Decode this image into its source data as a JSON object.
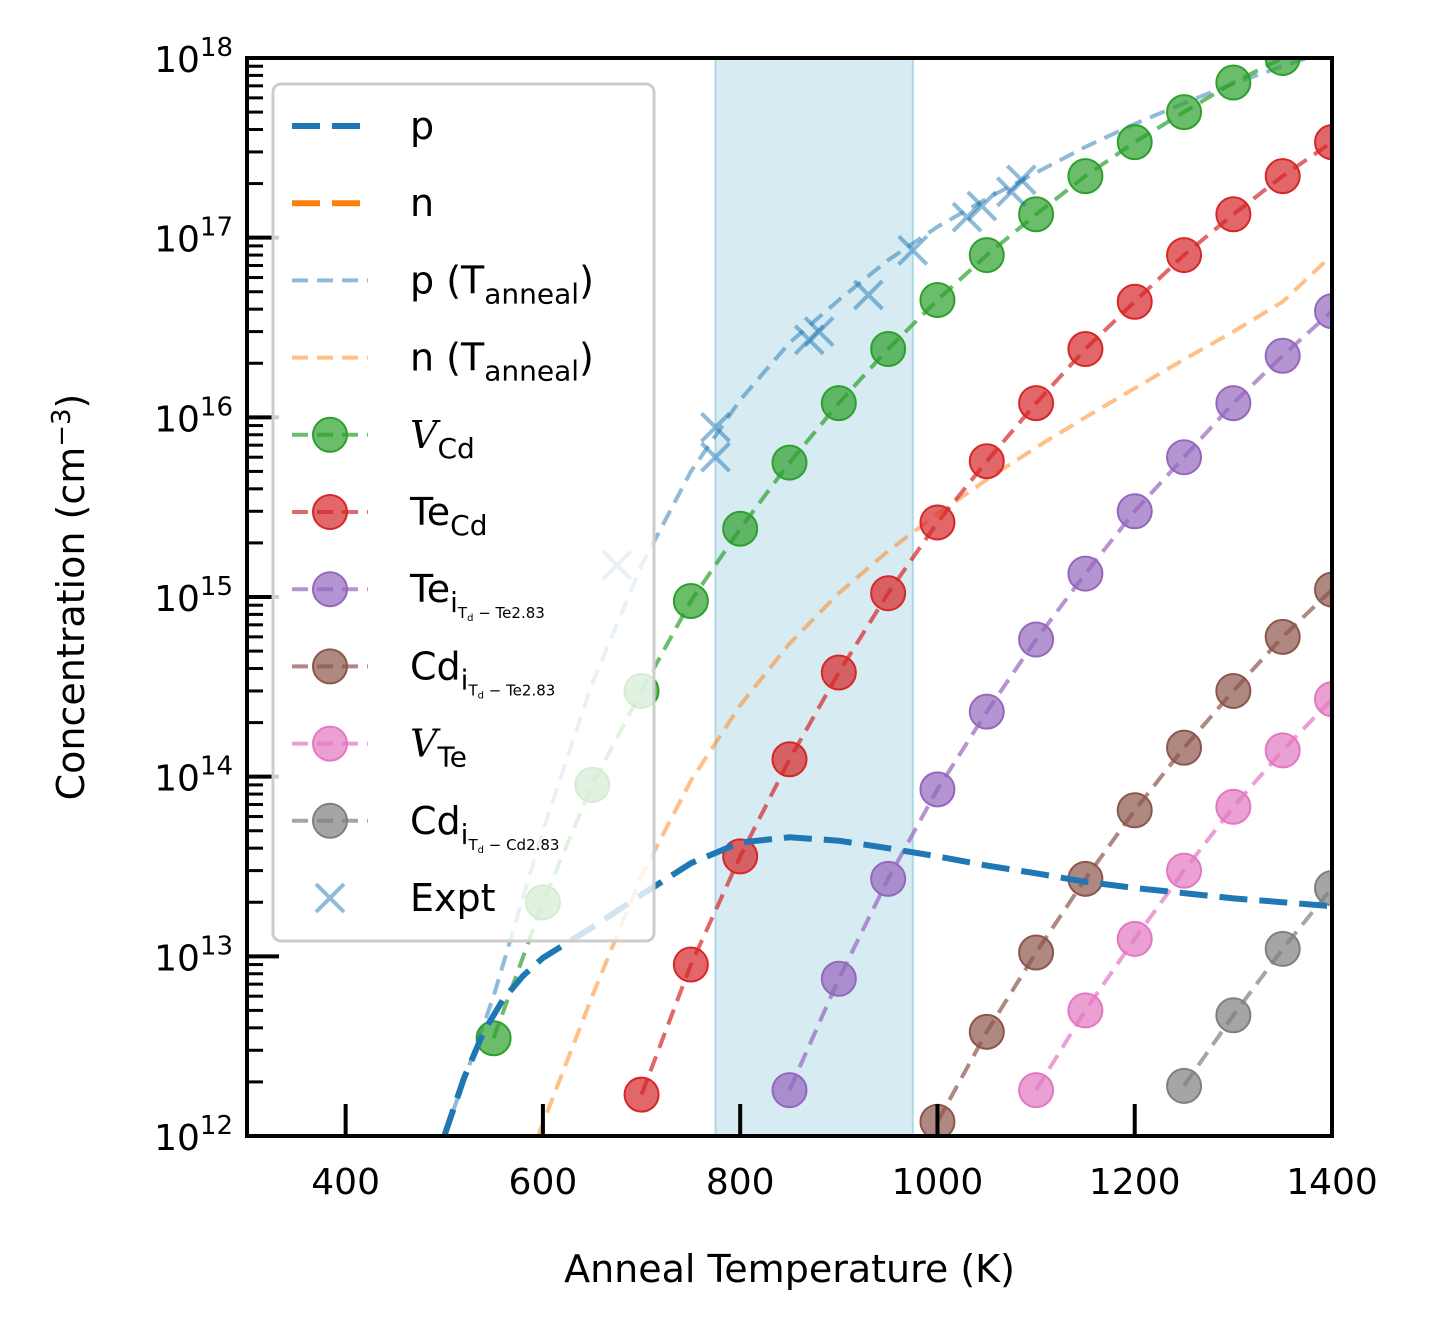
{
  "chart_data": {
    "type": "line",
    "xlabel": "Anneal Temperature (K)",
    "ylabel": {
      "main": "Concentration (cm",
      "sup": "−3",
      "end": ")"
    },
    "xlim": [
      300,
      1400
    ],
    "ylim_exp": [
      12,
      18
    ],
    "y_scale": "log",
    "x_ticks": [
      400,
      600,
      800,
      1000,
      1200,
      1400
    ],
    "y_ticks": [
      {
        "exp": 12,
        "base": "10",
        "sup": "12"
      },
      {
        "exp": 13,
        "base": "10",
        "sup": "13"
      },
      {
        "exp": 14,
        "base": "10",
        "sup": "14"
      },
      {
        "exp": 15,
        "base": "10",
        "sup": "15"
      },
      {
        "exp": 16,
        "base": "10",
        "sup": "16"
      },
      {
        "exp": 17,
        "base": "10",
        "sup": "17"
      },
      {
        "exp": 18,
        "base": "10",
        "sup": "18"
      }
    ],
    "shaded_band": {
      "x": [
        775,
        975
      ],
      "color": "#add8e6"
    },
    "legend_position": "upper-left",
    "series": [
      {
        "key": "p",
        "name": "p",
        "color": "#1f77b4",
        "style": "dashed-thick",
        "x": [
          500,
          520,
          540,
          560,
          580,
          600,
          650,
          700,
          750,
          800,
          850,
          900,
          950,
          1000,
          1050,
          1100,
          1150,
          1200,
          1250,
          1300,
          1350,
          1400
        ],
        "y": [
          1000000000000.0,
          2100000000000.0,
          3800000000000.0,
          5800000000000.0,
          7800000000000.0,
          9800000000000.0,
          14500000000000.0,
          22000000000000.0,
          33000000000000.0,
          43000000000000.0,
          46000000000000.0,
          44000000000000.0,
          40000000000000.0,
          36000000000000.0,
          32000000000000.0,
          29000000000000.0,
          26000000000000.0,
          24000000000000.0,
          22500000000000.0,
          21000000000000.0,
          20000000000000.0,
          19000000000000.0
        ]
      },
      {
        "key": "n",
        "name": "n",
        "color": "#ff7f0e",
        "style": "dashed-thick",
        "x": [],
        "y": []
      },
      {
        "key": "p_anneal",
        "name": "p (T",
        "sub": "anneal",
        "name_end": ")",
        "color": "#1f77b4",
        "style": "dashed-light",
        "x": [
          500,
          550,
          600,
          650,
          700,
          750,
          800,
          850,
          900,
          950,
          1000,
          1050,
          1100,
          1150,
          1200,
          1250,
          1300,
          1350,
          1375
        ],
        "y": [
          1000000000000.0,
          6000000000000.0,
          50000000000000.0,
          330000000000000.0,
          1500000000000000.0,
          5000000000000000.0,
          1.25e+16,
          2.6e+16,
          4.5e+16,
          7.5e+16,
          1.15e+17,
          1.65e+17,
          2.3e+17,
          3.2e+17,
          4.3e+17,
          5.6e+17,
          7.2e+17,
          9e+17,
          1e+18
        ]
      },
      {
        "key": "n_anneal",
        "name": "n (T",
        "sub": "anneal",
        "name_end": ")",
        "color": "#ff7f0e",
        "style": "dashed-light",
        "x": [
          595,
          650,
          700,
          750,
          800,
          850,
          900,
          950,
          1000,
          1050,
          1100,
          1150,
          1200,
          1250,
          1300,
          1350,
          1400
        ],
        "y": [
          1000000000000.0,
          6000000000000.0,
          28000000000000.0,
          95000000000000.0,
          250000000000000.0,
          550000000000000.0,
          1050000000000000.0,
          1800000000000000.0,
          2900000000000000.0,
          4500000000000000.0,
          6800000000000000.0,
          1e+16,
          1.45e+16,
          2.1e+16,
          3e+16,
          4.4e+16,
          8e+16
        ]
      },
      {
        "key": "v_cd",
        "name": "V",
        "sub": "Cd",
        "italic": true,
        "color": "#2ca02c",
        "style": "dashed-markers",
        "x": [
          550,
          600,
          650,
          700,
          750,
          800,
          850,
          900,
          950,
          1000,
          1050,
          1100,
          1150,
          1200,
          1250,
          1300,
          1350
        ],
        "y": [
          3500000000000.0,
          20000000000000.0,
          90000000000000.0,
          300000000000000.0,
          950000000000000.0,
          2400000000000000.0,
          5600000000000000.0,
          1.2e+16,
          2.4e+16,
          4.5e+16,
          8e+16,
          1.35e+17,
          2.2e+17,
          3.4e+17,
          5e+17,
          7.3e+17,
          1e+18
        ]
      },
      {
        "key": "te_cd",
        "name": "Te",
        "sub": "Cd",
        "color": "#d62728",
        "style": "dashed-markers",
        "x": [
          700,
          750,
          800,
          850,
          900,
          950,
          1000,
          1050,
          1100,
          1150,
          1200,
          1250,
          1300,
          1350,
          1400
        ],
        "y": [
          1700000000000.0,
          9000000000000.0,
          36000000000000.0,
          125000000000000.0,
          380000000000000.0,
          1050000000000000.0,
          2600000000000000.0,
          5700000000000000.0,
          1.2e+16,
          2.4e+16,
          4.4e+16,
          8e+16,
          1.35e+17,
          2.2e+17,
          3.4e+17
        ]
      },
      {
        "key": "te_i",
        "name": "Te",
        "sub": "i",
        "subsub": "T",
        "subsubsub": "d",
        "subtail": " − Te2.83",
        "color": "#9467bd",
        "style": "dashed-markers",
        "x": [
          850,
          900,
          950,
          1000,
          1050,
          1100,
          1150,
          1200,
          1250,
          1300,
          1350,
          1400
        ],
        "y": [
          1800000000000.0,
          7500000000000.0,
          27000000000000.0,
          85000000000000.0,
          230000000000000.0,
          580000000000000.0,
          1350000000000000.0,
          3000000000000000.0,
          6000000000000000.0,
          1.2e+16,
          2.2e+16,
          3.9e+16
        ]
      },
      {
        "key": "cd_i_te",
        "name": "Cd",
        "sub": "i",
        "subsub": "T",
        "subsubsub": "d",
        "subtail": " − Te2.83",
        "color": "#8c564b",
        "style": "dashed-markers",
        "x": [
          1000,
          1050,
          1100,
          1150,
          1200,
          1250,
          1300,
          1350,
          1400
        ],
        "y": [
          1200000000000.0,
          3800000000000.0,
          10500000000000.0,
          27000000000000.0,
          65000000000000.0,
          145000000000000.0,
          300000000000000.0,
          600000000000000.0,
          1100000000000000.0
        ]
      },
      {
        "key": "v_te",
        "name": "V",
        "sub": "Te",
        "italic": true,
        "color": "#e377c2",
        "style": "dashed-markers",
        "x": [
          1100,
          1150,
          1200,
          1250,
          1300,
          1350,
          1400
        ],
        "y": [
          1800000000000.0,
          5000000000000.0,
          12500000000000.0,
          30000000000000.0,
          68000000000000.0,
          140000000000000.0,
          270000000000000.0
        ]
      },
      {
        "key": "cd_i_cd",
        "name": "Cd",
        "sub": "i",
        "subsub": "T",
        "subsubsub": "d",
        "subtail": " − Cd2.83",
        "color": "#7f7f7f",
        "style": "dashed-markers",
        "x": [
          1250,
          1300,
          1350,
          1400
        ],
        "y": [
          1900000000000.0,
          4700000000000.0,
          11000000000000.0,
          24000000000000.0
        ]
      },
      {
        "key": "expt",
        "name": "Expt",
        "color": "#1f77b4",
        "style": "x-markers",
        "x": [
          675,
          775,
          775,
          870,
          880,
          930,
          975,
          1030,
          1045,
          1075,
          1085
        ],
        "y": [
          1500000000000000.0,
          6000000000000000.0,
          8800000000000000.0,
          2.7e+16,
          3e+16,
          4.8e+16,
          8.5e+16,
          1.3e+17,
          1.5e+17,
          1.8e+17,
          2.1e+17
        ]
      }
    ]
  }
}
